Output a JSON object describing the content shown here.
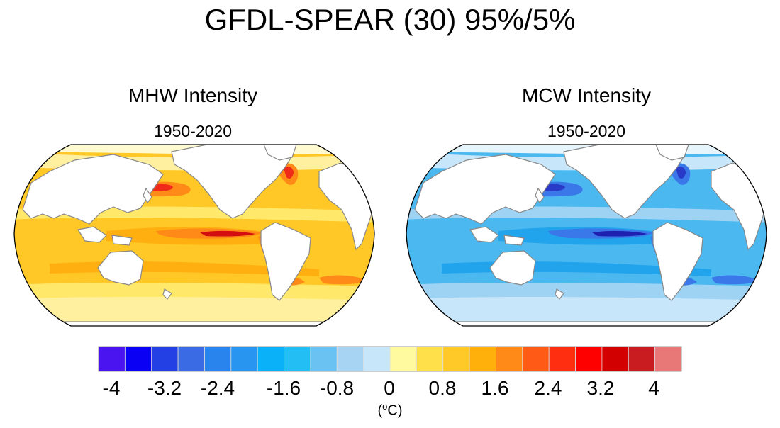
{
  "title": "GFDL-SPEAR (30) 95%/5%",
  "panels": [
    {
      "title": "MHW Intensity",
      "subtitle": "1950-2020",
      "palette": [
        "#ffe86a",
        "#ffc826",
        "#ffb010",
        "#ff8a18",
        "#ef2a18",
        "#d40e10",
        "#fff0a0",
        "#fffad0"
      ]
    },
    {
      "title": "MCW Intensity",
      "subtitle": "1950-2020",
      "palette": [
        "#9fd3f4",
        "#4cb8f0",
        "#22a4ec",
        "#3a78ea",
        "#2a3ac8",
        "#2020b0",
        "#c8e6fa",
        "#e6f4fc"
      ]
    }
  ],
  "colorbar": {
    "colors": [
      "#4a14f0",
      "#0a00f4",
      "#2240e4",
      "#3a6ae4",
      "#2a84ee",
      "#2896f0",
      "#0ab0f8",
      "#22bef4",
      "#6ac2f2",
      "#a6d4f2",
      "#c8e6fa",
      "#fffaa0",
      "#ffe04a",
      "#ffca28",
      "#ffb00a",
      "#ff8a18",
      "#ff5a16",
      "#ff2e10",
      "#ff0000",
      "#d20000",
      "#c81c20",
      "#e87878"
    ],
    "tick_labels": [
      "-4",
      "-3.2",
      "-2.4",
      "-1.6",
      "-0.8",
      "0",
      "0.8",
      "1.6",
      "2.4",
      "3.2",
      "4"
    ],
    "unit_label": "(oC)"
  }
}
